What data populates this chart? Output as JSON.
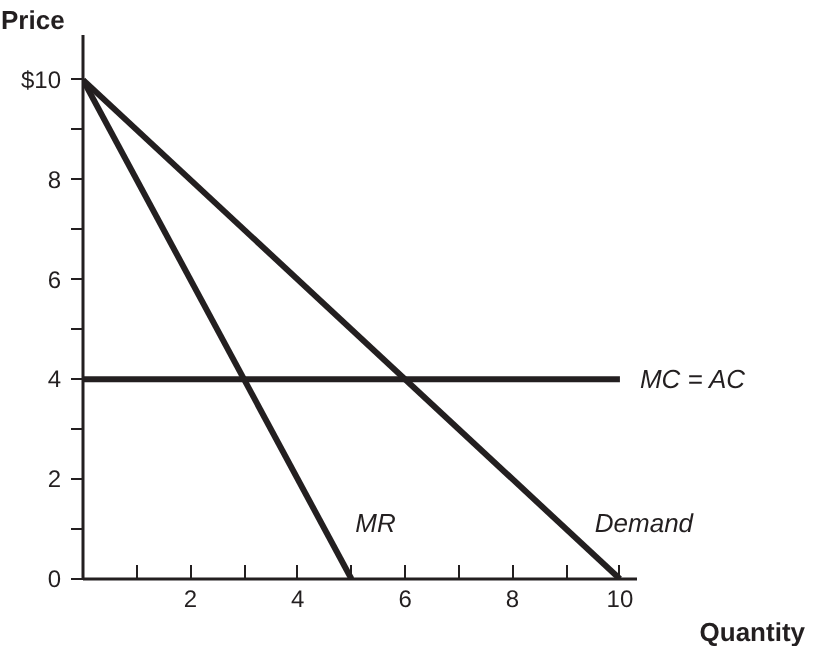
{
  "chart_data": {
    "type": "line",
    "xlabel": "Quantity",
    "ylabel": "Price",
    "xlim": [
      0,
      10.3
    ],
    "ylim": [
      0,
      10.9
    ],
    "xticks": [
      {
        "value": 1,
        "label": null
      },
      2,
      {
        "value": 3,
        "label": null
      },
      4,
      {
        "value": 5,
        "label": null
      },
      6,
      {
        "value": 7,
        "label": null
      },
      8,
      {
        "value": 9,
        "label": null
      },
      10
    ],
    "yticks": [
      0,
      {
        "value": 1,
        "label": null
      },
      2,
      {
        "value": 3,
        "label": null
      },
      4,
      {
        "value": 5,
        "label": null
      },
      6,
      {
        "value": 7,
        "label": null
      },
      8,
      {
        "value": 9,
        "label": null
      },
      {
        "value": 10,
        "label": "$10"
      }
    ],
    "grid": false,
    "legend": false,
    "marker": "none",
    "line_style": "solid",
    "series": [
      {
        "name": "MR",
        "color": "#231f20",
        "x": [
          0,
          5
        ],
        "values": [
          10,
          0
        ]
      },
      {
        "name": "Demand",
        "color": "#231f20",
        "x": [
          0,
          10
        ],
        "values": [
          10,
          0
        ]
      },
      {
        "name": "MC = AC",
        "color": "#231f20",
        "x": [
          0,
          10
        ],
        "values": [
          4,
          4
        ]
      }
    ]
  }
}
